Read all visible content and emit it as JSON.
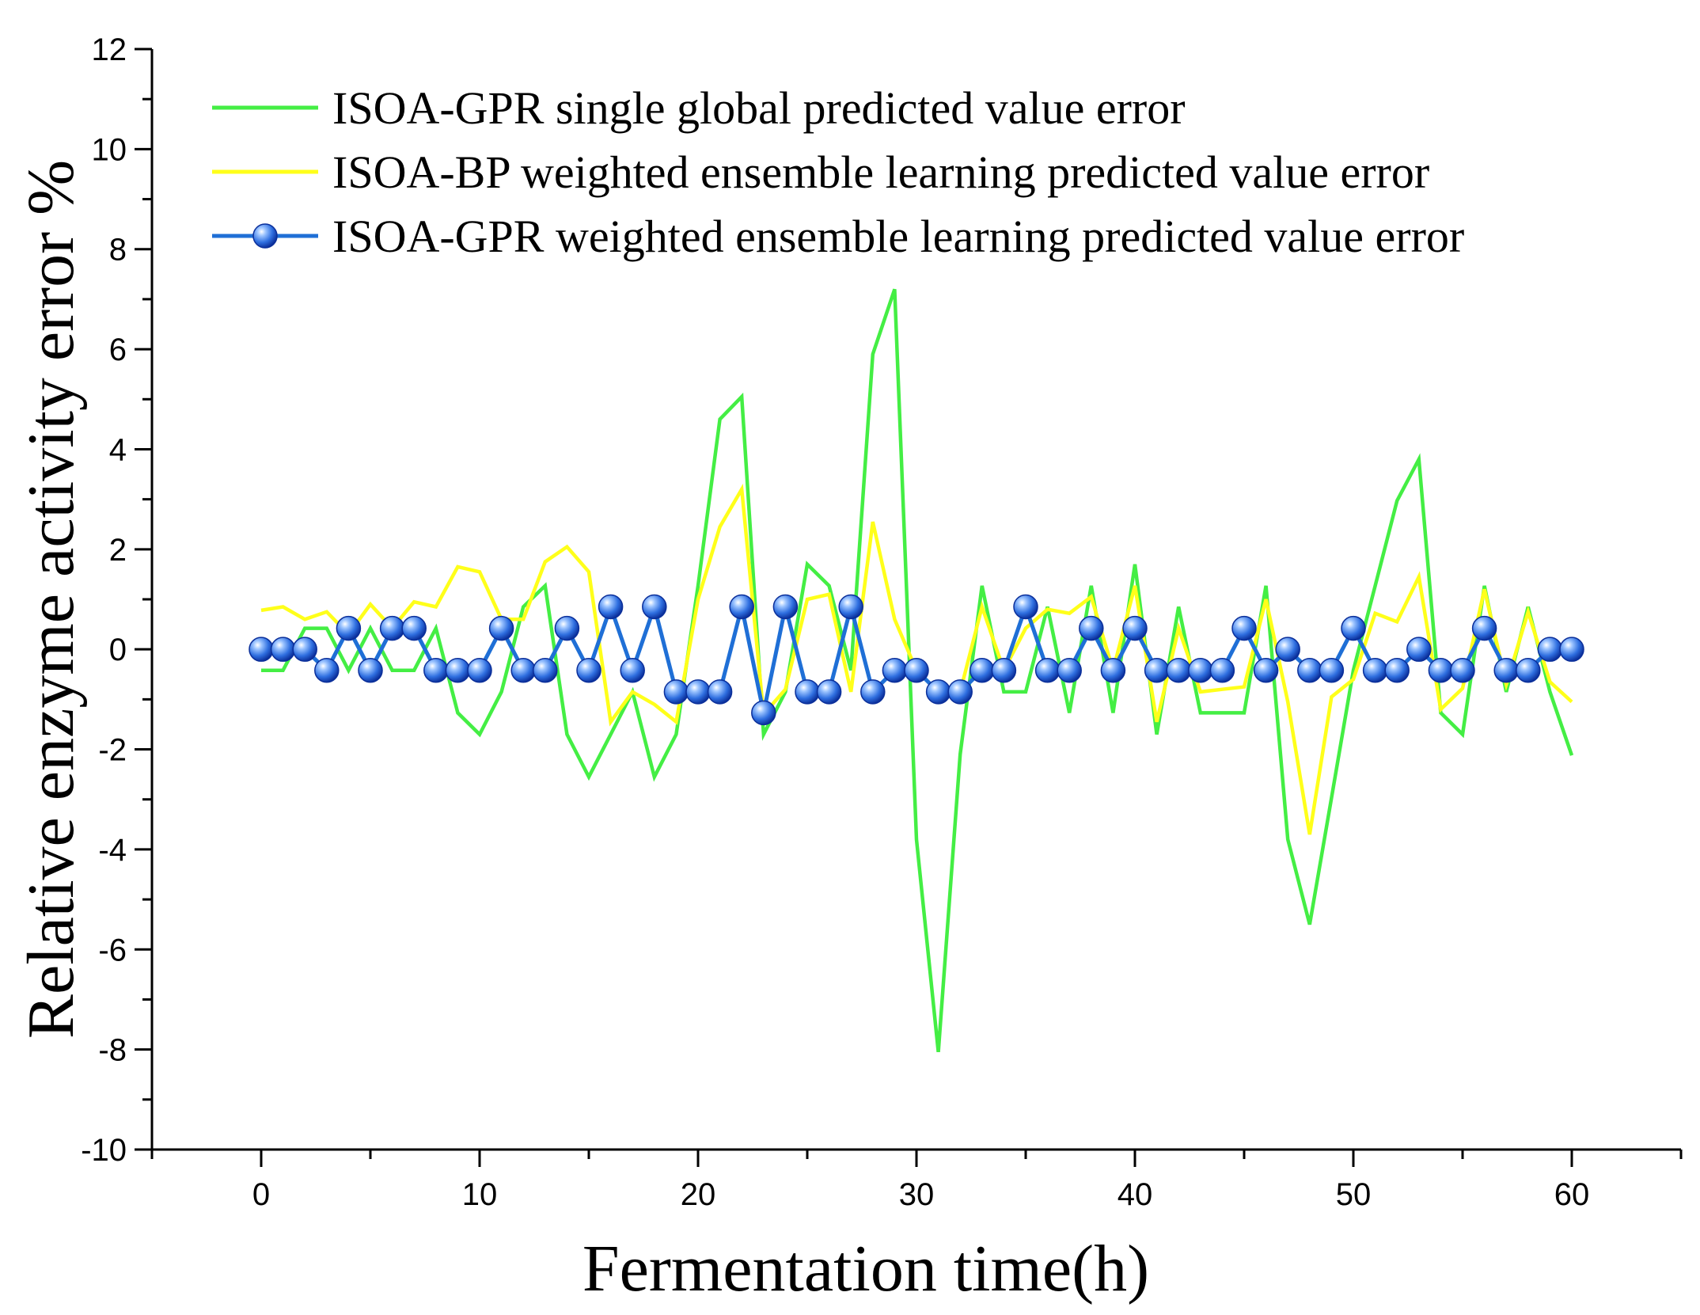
{
  "chart_data": {
    "type": "line",
    "title": "",
    "xlabel": "Fermentation time(h)",
    "ylabel": "Relative enzyme activity error %",
    "xlim": [
      -5,
      65
    ],
    "ylim": [
      -10,
      12
    ],
    "xticks": [
      0,
      10,
      20,
      30,
      40,
      50,
      60
    ],
    "yticks": [
      -10,
      -8,
      -6,
      -4,
      -2,
      0,
      2,
      4,
      6,
      8,
      10,
      12
    ],
    "grid": false,
    "legend_position": "top-left",
    "x": [
      0,
      1,
      2,
      3,
      4,
      5,
      6,
      7,
      8,
      9,
      10,
      11,
      12,
      13,
      14,
      15,
      16,
      17,
      18,
      19,
      20,
      21,
      22,
      23,
      24,
      25,
      26,
      27,
      28,
      29,
      30,
      31,
      32,
      33,
      34,
      35,
      36,
      37,
      38,
      39,
      40,
      41,
      42,
      43,
      44,
      45,
      46,
      47,
      48,
      49,
      50,
      51,
      52,
      53,
      54,
      55,
      56,
      57,
      58,
      59,
      60
    ],
    "series": [
      {
        "name": "ISOA-GPR single global predicted value error",
        "color": "#44ee44",
        "marker": "none",
        "values": [
          -0.42,
          -0.42,
          0.42,
          0.42,
          -0.42,
          0.42,
          -0.42,
          -0.42,
          0.42,
          -1.27,
          -1.7,
          -0.85,
          0.85,
          1.27,
          -1.7,
          -2.55,
          -1.7,
          -0.85,
          -2.55,
          -1.7,
          1.27,
          4.6,
          5.05,
          -1.7,
          -0.85,
          1.7,
          1.27,
          -0.42,
          5.9,
          7.2,
          -3.8,
          -8.05,
          -2.1,
          1.27,
          -0.85,
          -0.85,
          0.85,
          -1.27,
          1.27,
          -1.27,
          1.7,
          -1.7,
          0.85,
          -1.27,
          -1.27,
          -1.27,
          1.27,
          -3.8,
          -5.5,
          -2.97,
          -0.42,
          1.27,
          2.97,
          3.8,
          -1.27,
          -1.7,
          1.27,
          -0.85,
          0.85,
          -0.85,
          -2.12
        ]
      },
      {
        "name": "ISOA-BP weighted ensemble learning predicted value error",
        "color": "#ffff1a",
        "marker": "none",
        "values": [
          0.78,
          0.85,
          0.6,
          0.75,
          0.3,
          0.9,
          0.42,
          0.95,
          0.85,
          1.65,
          1.55,
          0.6,
          0.6,
          1.75,
          2.05,
          1.55,
          -1.45,
          -0.85,
          -1.1,
          -1.45,
          1.0,
          2.45,
          3.2,
          -1.3,
          -0.8,
          1.0,
          1.1,
          -0.85,
          2.55,
          0.6,
          -0.42,
          -0.85,
          -0.85,
          0.85,
          -0.42,
          0.42,
          0.8,
          0.72,
          1.05,
          -0.42,
          1.27,
          -1.45,
          0.42,
          -0.85,
          -0.8,
          -0.75,
          1.0,
          -1.05,
          -3.7,
          -0.95,
          -0.6,
          0.72,
          0.55,
          1.45,
          -1.2,
          -0.78,
          1.2,
          -0.7,
          0.75,
          -0.65,
          -1.05
        ]
      },
      {
        "name": "ISOA-GPR weighted ensemble learning predicted value error",
        "color": "#1f6fd6",
        "marker": "sphere",
        "values": [
          0,
          0,
          0,
          -0.42,
          0.42,
          -0.42,
          0.42,
          0.42,
          -0.42,
          -0.42,
          -0.42,
          0.42,
          -0.42,
          -0.42,
          0.42,
          -0.42,
          0.85,
          -0.42,
          0.85,
          -0.85,
          -0.85,
          -0.85,
          0.85,
          -1.27,
          0.85,
          -0.85,
          -0.85,
          0.85,
          -0.85,
          -0.42,
          -0.42,
          -0.85,
          -0.85,
          -0.42,
          -0.42,
          0.85,
          -0.42,
          -0.42,
          0.42,
          -0.42,
          0.42,
          -0.42,
          -0.42,
          -0.42,
          -0.42,
          0.42,
          -0.42,
          0,
          -0.42,
          -0.42,
          0.42,
          -0.42,
          -0.42,
          0,
          -0.42,
          -0.42,
          0.42,
          -0.42,
          -0.42,
          0,
          0
        ]
      }
    ]
  }
}
